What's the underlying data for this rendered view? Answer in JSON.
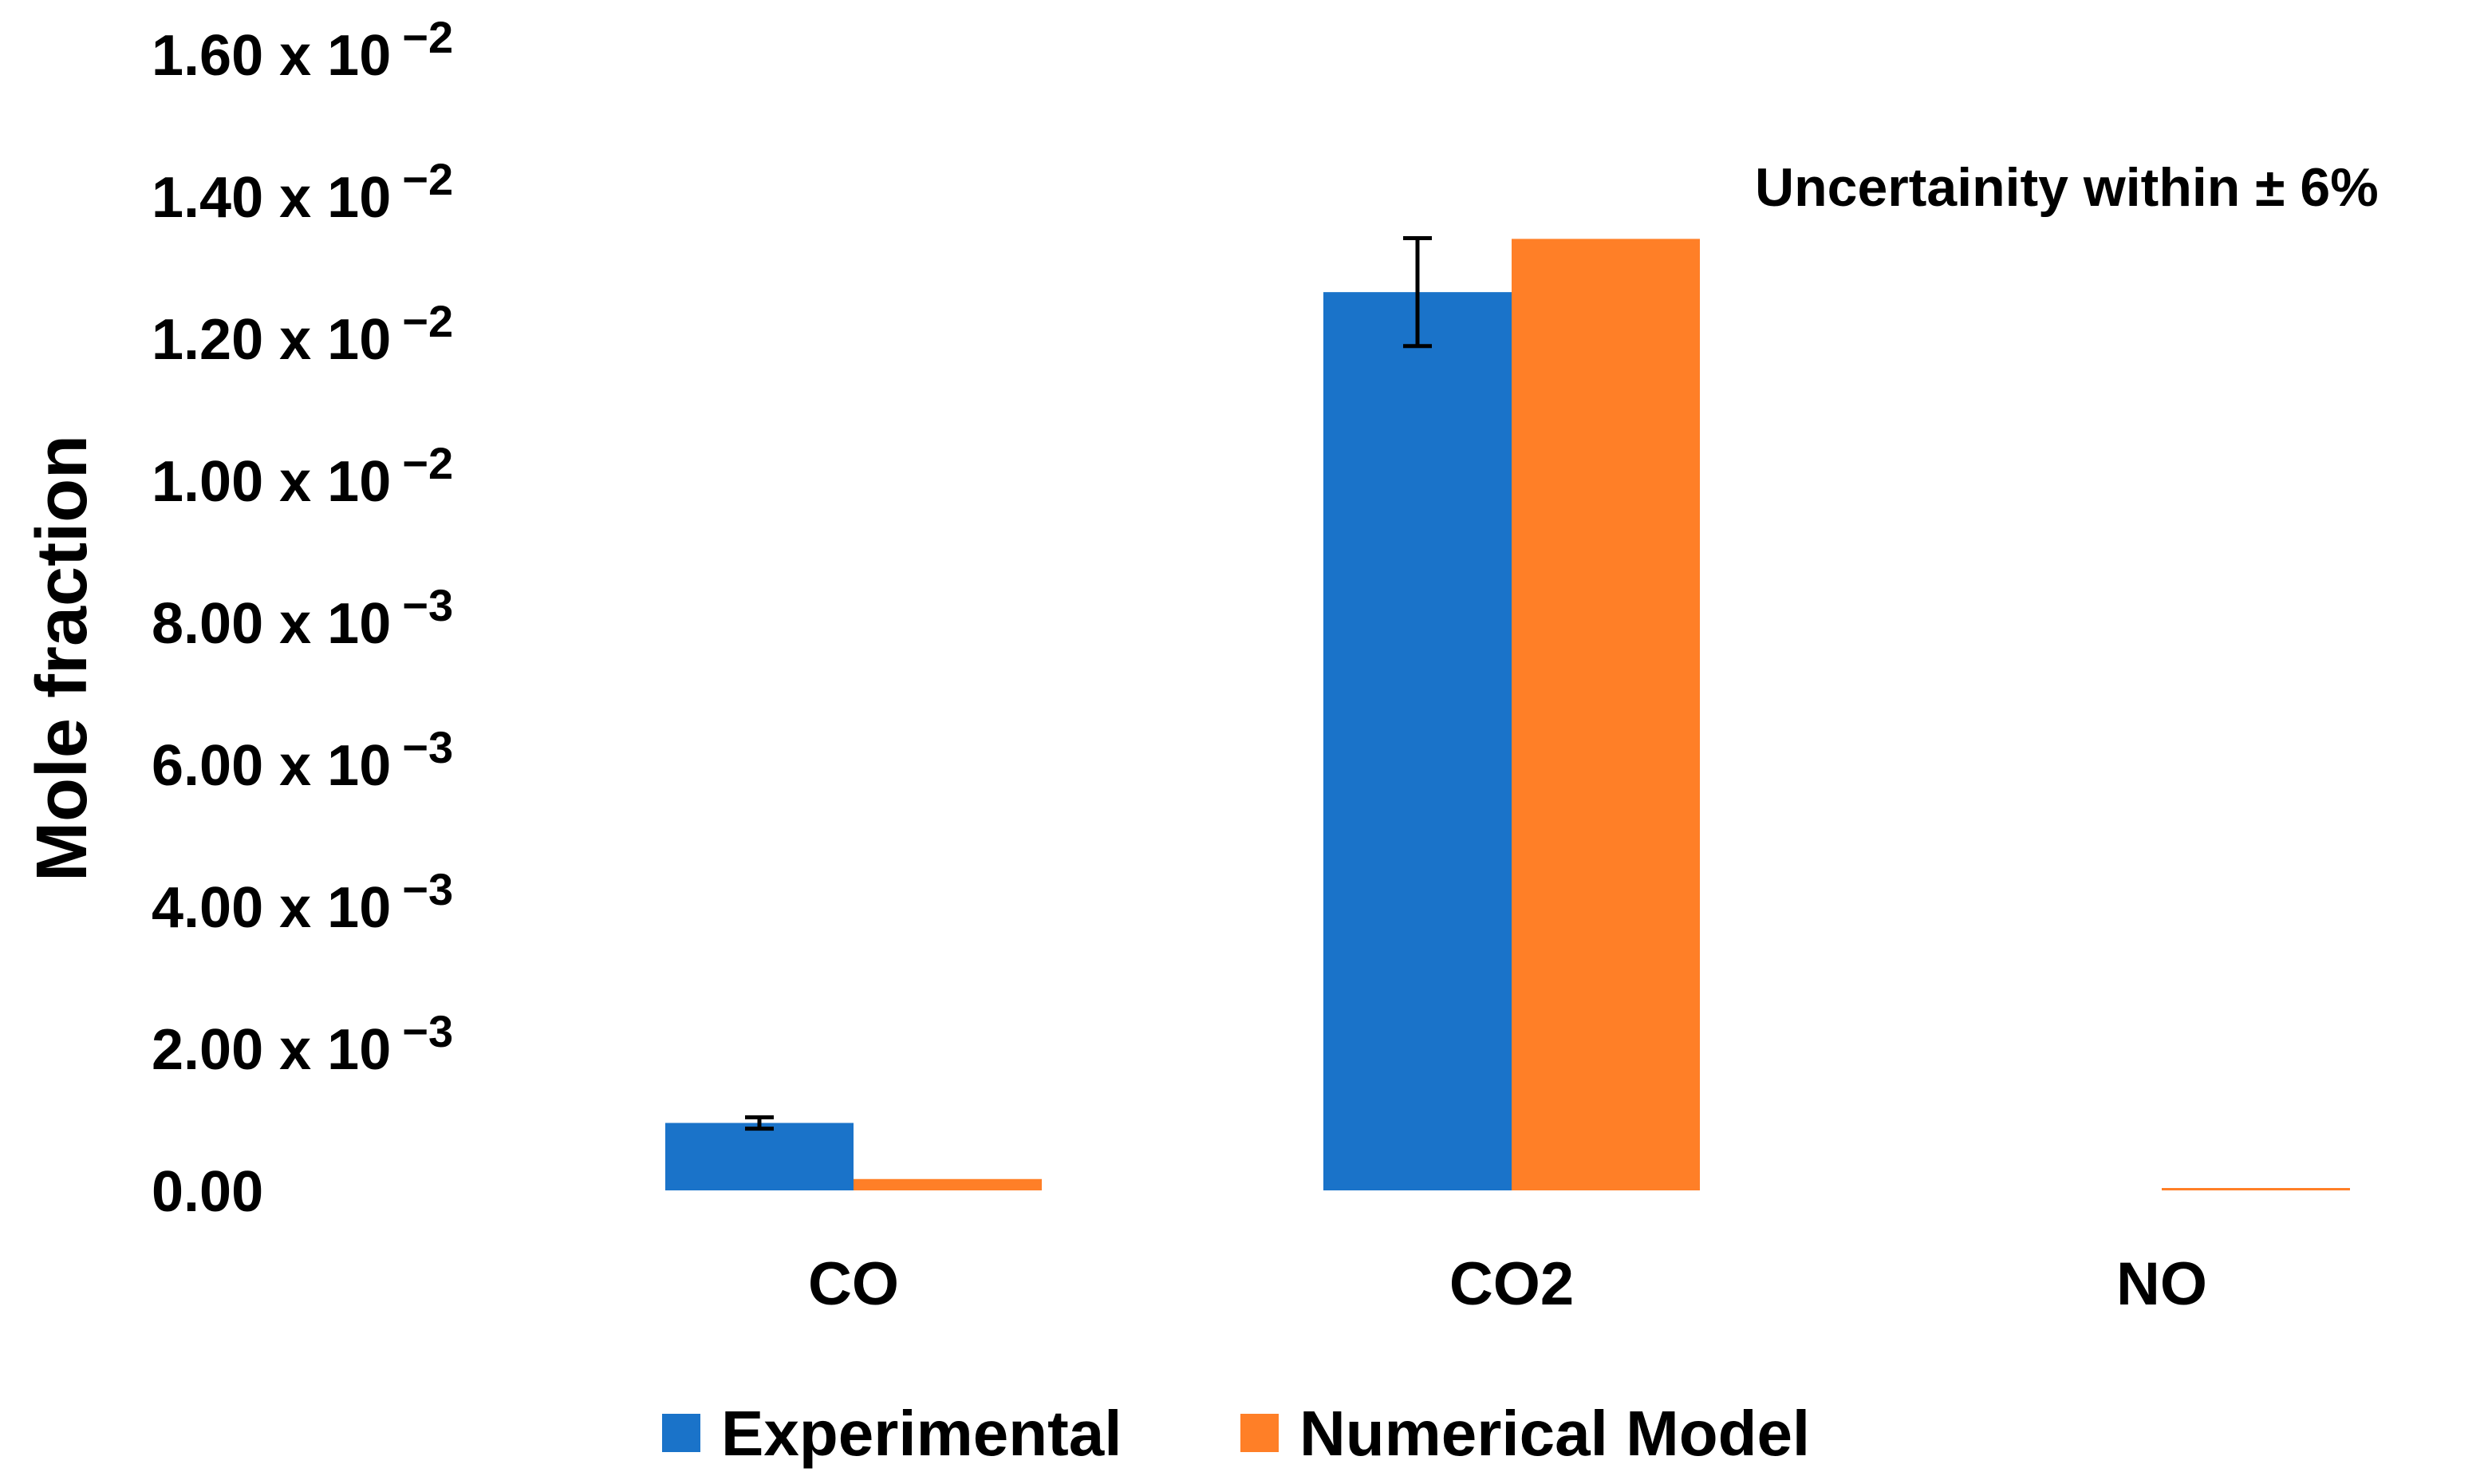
{
  "chart_data": {
    "type": "bar",
    "title": "",
    "xlabel": "",
    "ylabel": "Mole fraction",
    "ylim": [
      0,
      0.016
    ],
    "grid": false,
    "categories": [
      "CO",
      "CO2",
      "NO"
    ],
    "series": [
      {
        "name": "Experimental",
        "color": "#1a73c9",
        "values": [
          0.00095,
          0.01265,
          0.0
        ],
        "error": [
          8e-05,
          0.00076,
          0.0
        ]
      },
      {
        "name": "Numerical Model",
        "color": "#ff7f27",
        "values": [
          0.00016,
          0.0134,
          3e-05
        ]
      }
    ],
    "y_ticks": [
      {
        "value": 0.0,
        "label": "0.00",
        "exp": ""
      },
      {
        "value": 0.002,
        "label": "2.00 x 10",
        "exp": "−3"
      },
      {
        "value": 0.004,
        "label": "4.00 x 10",
        "exp": "−3"
      },
      {
        "value": 0.006,
        "label": "6.00 x 10",
        "exp": "−3"
      },
      {
        "value": 0.008,
        "label": "8.00 x 10",
        "exp": "−3"
      },
      {
        "value": 0.01,
        "label": "1.00 x 10",
        "exp": "−2"
      },
      {
        "value": 0.012,
        "label": "1.20 x 10",
        "exp": "−2"
      },
      {
        "value": 0.014,
        "label": "1.40 x 10",
        "exp": "−2"
      },
      {
        "value": 0.016,
        "label": "1.60 x 10",
        "exp": "−2"
      }
    ],
    "annotation": "Uncertainity within ± 6%",
    "legend_position": "bottom-center"
  }
}
